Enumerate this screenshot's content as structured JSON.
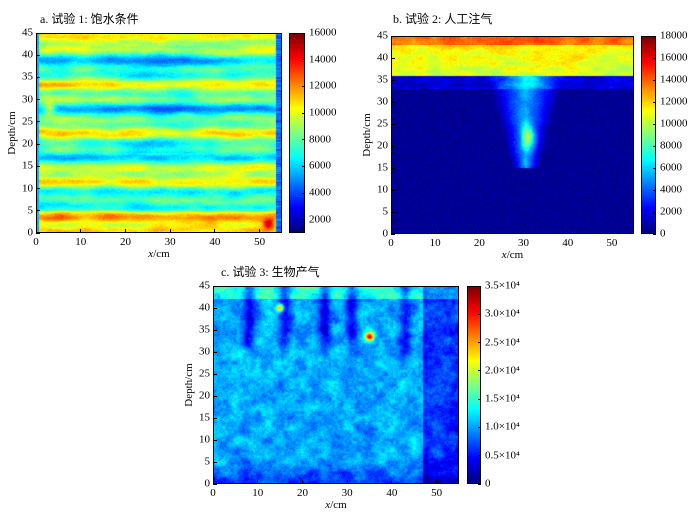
{
  "chart_data": [
    {
      "id": "a",
      "type": "heatmap",
      "title": "a. 试验 1: 饱水条件",
      "xlabel": "x/cm",
      "ylabel": "Depth/cm",
      "xlim": [
        0,
        55
      ],
      "ylim": [
        0,
        45
      ],
      "xticks": [
        "0",
        "10",
        "20",
        "30",
        "40",
        "50"
      ],
      "yticks": [
        "0",
        "5",
        "10",
        "15",
        "20",
        "25",
        "30",
        "35",
        "40",
        "45"
      ],
      "colorbar": {
        "range": [
          1000,
          16000
        ],
        "ticks": [
          "2000",
          "4000",
          "6000",
          "8000",
          "10000",
          "12000",
          "14000",
          "16000"
        ]
      }
    },
    {
      "id": "b",
      "type": "heatmap",
      "title": "b. 试验 2: 人工注气",
      "xlabel": "x/cm",
      "ylabel": "Depth/cm",
      "xlim": [
        0,
        55
      ],
      "ylim": [
        0,
        45
      ],
      "xticks": [
        "0",
        "10",
        "20",
        "30",
        "40",
        "50"
      ],
      "yticks": [
        "0",
        "5",
        "10",
        "15",
        "20",
        "25",
        "30",
        "35",
        "40",
        "45"
      ],
      "colorbar": {
        "range": [
          0,
          18000
        ],
        "ticks": [
          "0",
          "2000",
          "4000",
          "6000",
          "8000",
          "10000",
          "12000",
          "14000",
          "16000",
          "18000"
        ]
      }
    },
    {
      "id": "c",
      "type": "heatmap",
      "title": "c. 试验 3: 生物产气",
      "xlabel": "x/cm",
      "ylabel": "Depth/cm",
      "xlim": [
        0,
        55
      ],
      "ylim": [
        0,
        45
      ],
      "xticks": [
        "0",
        "10",
        "20",
        "30",
        "40",
        "50"
      ],
      "yticks": [
        "0",
        "5",
        "10",
        "15",
        "20",
        "25",
        "30",
        "35",
        "40",
        "45"
      ],
      "colorbar": {
        "range": [
          0,
          35000
        ],
        "ticks": [
          "0",
          "0.5×10⁴",
          "1.0×10⁴",
          "1.5×10⁴",
          "2.0×10⁴",
          "2.5×10⁴",
          "3.0×10⁴",
          "3.5×10⁴"
        ]
      }
    }
  ]
}
